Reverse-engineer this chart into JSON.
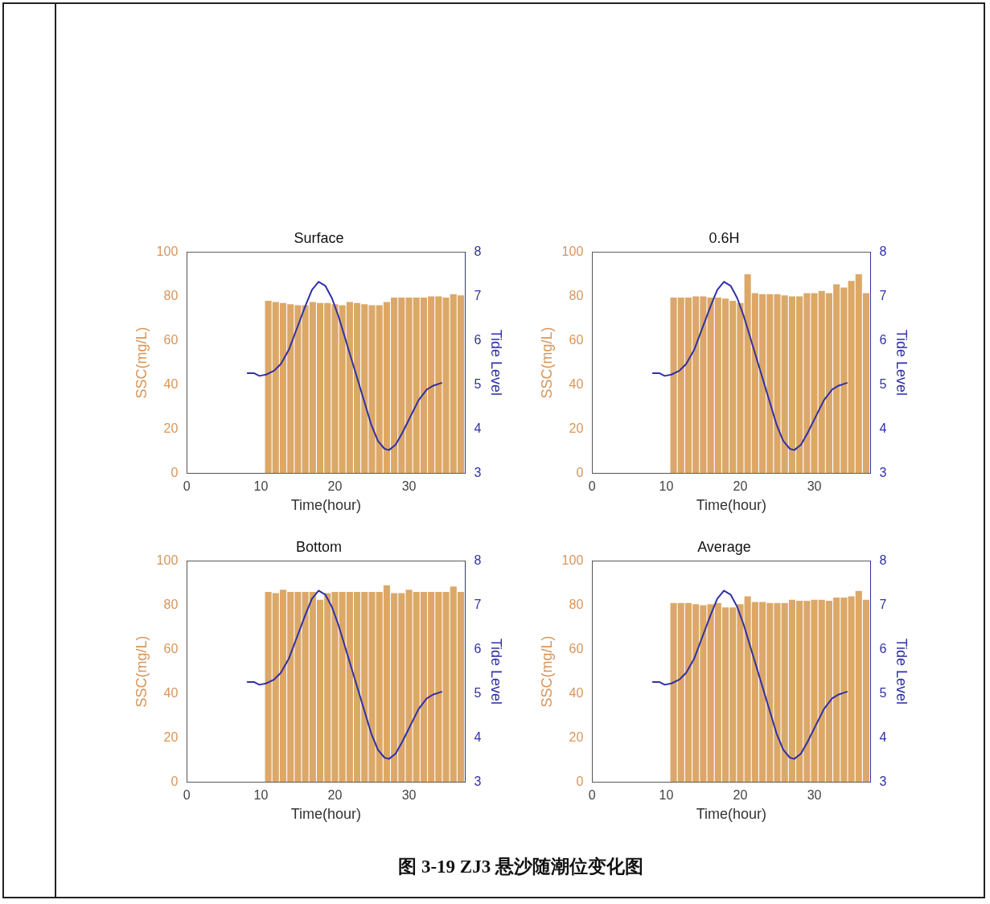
{
  "chart_data": [
    {
      "type": "bar",
      "title": "Surface",
      "xlabel": "Time(hour)",
      "ylabel": "SSC(mg/L)",
      "y2label": "Tide Level",
      "x": [
        11,
        12,
        13,
        14,
        15,
        16,
        17,
        18,
        19,
        20,
        21,
        22,
        23,
        24,
        25,
        26,
        27,
        28,
        29,
        30,
        31,
        32,
        33,
        34,
        35,
        36,
        37
      ],
      "xlim": [
        0,
        37.6
      ],
      "xticks": [
        0,
        10,
        20,
        30
      ],
      "ylim": [
        0,
        100
      ],
      "yticks": [
        0,
        20,
        40,
        60,
        80,
        100
      ],
      "y2lim": [
        3,
        8
      ],
      "y2ticks": [
        3,
        4,
        5,
        6,
        7,
        8
      ],
      "series": [
        {
          "color": "#dca868",
          "values": [
            78,
            77.5,
            77,
            76.5,
            76,
            76,
            77.5,
            77,
            77,
            76.5,
            76,
            77.5,
            77,
            76.5,
            76,
            76,
            77.5,
            79.5,
            79.5,
            79.5,
            79.5,
            79.5,
            80,
            80,
            79.5,
            81,
            80.5
          ]
        },
        {
          "type": "line",
          "axis": "y2",
          "color": "#3030a8",
          "x": [
            8.2,
            9.1,
            9.8,
            10.7,
            11.8,
            12.7,
            13.8,
            14.9,
            16.0,
            16.9,
            17.8,
            18.7,
            19.6,
            20.5,
            21.6,
            22.7,
            23.8,
            24.9,
            25.8,
            26.7,
            27.3,
            28.2,
            29.1,
            30.2,
            31.3,
            32.4,
            33.3,
            34.4
          ],
          "values": [
            5.26,
            5.26,
            5.2,
            5.23,
            5.32,
            5.47,
            5.8,
            6.29,
            6.78,
            7.15,
            7.33,
            7.24,
            6.96,
            6.54,
            5.93,
            5.32,
            4.71,
            4.1,
            3.73,
            3.55,
            3.52,
            3.64,
            3.91,
            4.28,
            4.65,
            4.89,
            4.98,
            5.04
          ]
        }
      ]
    },
    {
      "type": "bar",
      "title": "0.6H",
      "xlabel": "Time(hour)",
      "ylabel": "SSC(mg/L)",
      "y2label": "Tide Level",
      "x": [
        11,
        12,
        13,
        14,
        15,
        16,
        17,
        18,
        19,
        20,
        21,
        22,
        23,
        24,
        25,
        26,
        27,
        28,
        29,
        30,
        31,
        32,
        33,
        34,
        35,
        36,
        37
      ],
      "xlim": [
        0,
        37.6
      ],
      "xticks": [
        0,
        10,
        20,
        30
      ],
      "ylim": [
        0,
        100
      ],
      "yticks": [
        0,
        20,
        40,
        60,
        80,
        100
      ],
      "y2lim": [
        3,
        8
      ],
      "y2ticks": [
        3,
        4,
        5,
        6,
        7,
        8
      ],
      "series": [
        {
          "color": "#dca868",
          "values": [
            79.5,
            79.5,
            79.5,
            80,
            80,
            79.5,
            79.5,
            79,
            78,
            77,
            90,
            81.5,
            81,
            81,
            81,
            80.5,
            80,
            80,
            81.5,
            81.5,
            82.5,
            81.5,
            85.5,
            84,
            87,
            90,
            81.5
          ]
        },
        {
          "type": "line",
          "axis": "y2",
          "color": "#3030a8",
          "x": [
            8.2,
            9.1,
            9.8,
            10.7,
            11.8,
            12.7,
            13.8,
            14.9,
            16.0,
            16.9,
            17.8,
            18.7,
            19.6,
            20.5,
            21.6,
            22.7,
            23.8,
            24.9,
            25.8,
            26.7,
            27.3,
            28.2,
            29.1,
            30.2,
            31.3,
            32.4,
            33.3,
            34.4
          ],
          "values": [
            5.26,
            5.26,
            5.2,
            5.23,
            5.32,
            5.47,
            5.8,
            6.29,
            6.78,
            7.15,
            7.33,
            7.24,
            6.96,
            6.54,
            5.93,
            5.32,
            4.71,
            4.1,
            3.73,
            3.55,
            3.52,
            3.64,
            3.91,
            4.28,
            4.65,
            4.89,
            4.98,
            5.04
          ]
        }
      ]
    },
    {
      "type": "bar",
      "title": "Bottom",
      "xlabel": "Time(hour)",
      "ylabel": "SSC(mg/L)",
      "y2label": "Tide Level",
      "x": [
        11,
        12,
        13,
        14,
        15,
        16,
        17,
        18,
        19,
        20,
        21,
        22,
        23,
        24,
        25,
        26,
        27,
        28,
        29,
        30,
        31,
        32,
        33,
        34,
        35,
        36,
        37
      ],
      "xlim": [
        0,
        37.6
      ],
      "xticks": [
        0,
        10,
        20,
        30
      ],
      "ylim": [
        0,
        100
      ],
      "yticks": [
        0,
        20,
        40,
        60,
        80,
        100
      ],
      "y2lim": [
        3,
        8
      ],
      "y2ticks": [
        3,
        4,
        5,
        6,
        7,
        8
      ],
      "series": [
        {
          "color": "#dca868",
          "values": [
            86,
            85.5,
            87,
            86,
            86,
            86,
            86,
            82.5,
            85.5,
            86,
            86,
            86,
            86,
            86,
            86,
            86,
            89,
            85.5,
            85.5,
            87,
            86,
            86,
            86,
            86,
            86,
            88.5,
            86
          ]
        },
        {
          "type": "line",
          "axis": "y2",
          "color": "#3030a8",
          "x": [
            8.2,
            9.1,
            9.8,
            10.7,
            11.8,
            12.7,
            13.8,
            14.9,
            16.0,
            16.9,
            17.8,
            18.7,
            19.6,
            20.5,
            21.6,
            22.7,
            23.8,
            24.9,
            25.8,
            26.7,
            27.3,
            28.2,
            29.1,
            30.2,
            31.3,
            32.4,
            33.3,
            34.4
          ],
          "values": [
            5.26,
            5.26,
            5.2,
            5.23,
            5.32,
            5.47,
            5.8,
            6.29,
            6.78,
            7.15,
            7.33,
            7.24,
            6.96,
            6.54,
            5.93,
            5.32,
            4.71,
            4.1,
            3.73,
            3.55,
            3.52,
            3.64,
            3.91,
            4.28,
            4.65,
            4.89,
            4.98,
            5.04
          ]
        }
      ]
    },
    {
      "type": "bar",
      "title": "Average",
      "xlabel": "Time(hour)",
      "ylabel": "SSC(mg/L)",
      "y2label": "Tide Level",
      "x": [
        11,
        12,
        13,
        14,
        15,
        16,
        17,
        18,
        19,
        20,
        21,
        22,
        23,
        24,
        25,
        26,
        27,
        28,
        29,
        30,
        31,
        32,
        33,
        34,
        35,
        36,
        37
      ],
      "xlim": [
        0,
        37.6
      ],
      "xticks": [
        0,
        10,
        20,
        30
      ],
      "ylim": [
        0,
        100
      ],
      "yticks": [
        0,
        20,
        40,
        60,
        80,
        100
      ],
      "y2lim": [
        3,
        8
      ],
      "y2ticks": [
        3,
        4,
        5,
        6,
        7,
        8
      ],
      "annotations": [
        "图 3-19 ZJ3 悬沙随潮位变化图"
      ],
      "series": [
        {
          "color": "#dca868",
          "values": [
            81,
            81,
            81,
            80.5,
            80,
            80.5,
            81,
            79,
            79,
            80.5,
            84,
            81.5,
            81.5,
            81,
            81,
            81,
            82.5,
            82,
            82,
            82.5,
            82.5,
            82,
            83.5,
            83.5,
            84,
            86.5,
            82.5
          ]
        },
        {
          "type": "line",
          "axis": "y2",
          "color": "#3030a8",
          "x": [
            8.2,
            9.1,
            9.8,
            10.7,
            11.8,
            12.7,
            13.8,
            14.9,
            16.0,
            16.9,
            17.8,
            18.7,
            19.6,
            20.5,
            21.6,
            22.7,
            23.8,
            24.9,
            25.8,
            26.7,
            27.3,
            28.2,
            29.1,
            30.2,
            31.3,
            32.4,
            33.3,
            34.4
          ],
          "values": [
            5.26,
            5.26,
            5.2,
            5.23,
            5.32,
            5.47,
            5.8,
            6.29,
            6.78,
            7.15,
            7.33,
            7.24,
            6.96,
            6.54,
            5.93,
            5.32,
            4.71,
            4.1,
            3.73,
            3.55,
            3.52,
            3.64,
            3.91,
            4.28,
            4.65,
            4.89,
            4.98,
            5.04
          ]
        }
      ]
    }
  ]
}
